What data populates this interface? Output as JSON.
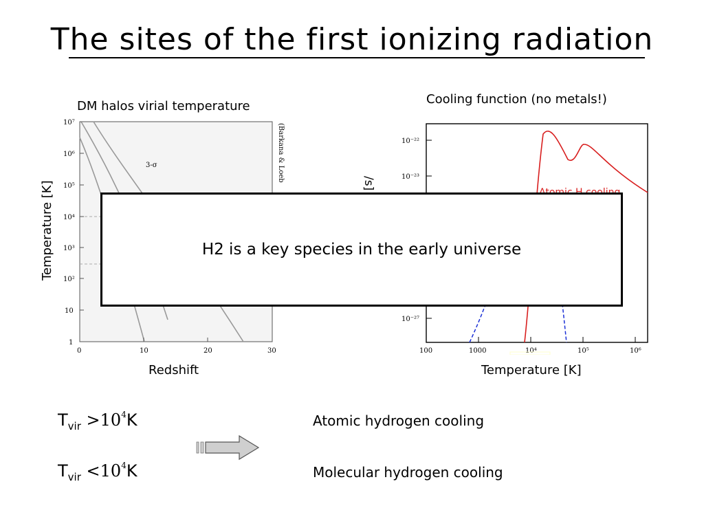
{
  "slide": {
    "title": "The sites of the first ionizing radiation"
  },
  "left_plot": {
    "caption": "DM halos virial temperature",
    "ylabel": "Temperature [K]",
    "xlabel": "Redshift",
    "side_label": "(Barkana & Loeb",
    "curve_label": "3-σ",
    "y_ticks": [
      "10⁷",
      "10⁶",
      "10⁵",
      "10⁴",
      "10³",
      "10²",
      "10",
      "1"
    ],
    "x_ticks": [
      "0",
      "10",
      "20",
      "30"
    ]
  },
  "right_plot": {
    "caption": "Cooling function (no metals!)",
    "ylabel_fragment": "/s]",
    "xlabel": "Temperature [K]",
    "series_label": "Atomic H cooling",
    "y_ticks": [
      "10⁻²²",
      "10⁻²³",
      "10⁻²⁷"
    ],
    "x_ticks": [
      "100",
      "1000",
      "10⁴",
      "10⁵",
      "10⁶"
    ],
    "atomic_color": "#d81e1e",
    "molecular_color": "#1a2fd6"
  },
  "overlay": {
    "text": "H2 is a key species in the early universe"
  },
  "bottom": {
    "t_symbol": "T",
    "t_sub": "vir",
    "gt": ">",
    "lt": "<",
    "base": "10",
    "exp": "4",
    "unit": "K",
    "atomic_text": "Atomic hydrogen cooling",
    "molecular_text": "Molecular hydrogen cooling"
  }
}
